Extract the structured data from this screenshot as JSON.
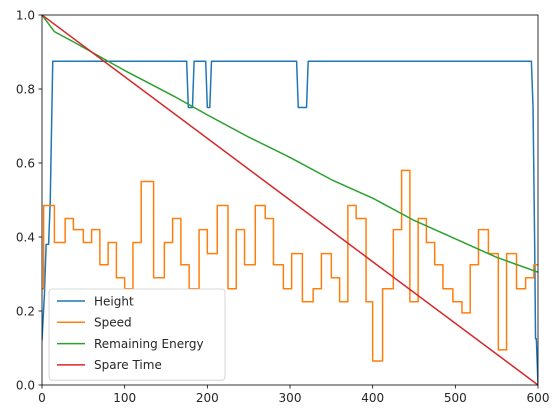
{
  "chart_data": {
    "type": "line",
    "title": "",
    "xlabel": "",
    "ylabel": "",
    "xlim": [
      0,
      600
    ],
    "ylim": [
      0,
      1
    ],
    "xticks": [
      "0",
      "100",
      "200",
      "300",
      "400",
      "500",
      "600"
    ],
    "yticks": [
      "0.0",
      "0.2",
      "0.4",
      "0.6",
      "0.8",
      "1.0"
    ],
    "grid": false,
    "legend_position": "lower-left",
    "series": [
      {
        "name": "Height",
        "color": "#1f77b4",
        "step": false,
        "points": [
          [
            0,
            0.12
          ],
          [
            3,
            0.25
          ],
          [
            5,
            0.38
          ],
          [
            8,
            0.38
          ],
          [
            10,
            0.5
          ],
          [
            13,
            0.875
          ],
          [
            175,
            0.875
          ],
          [
            177,
            0.75
          ],
          [
            182,
            0.75
          ],
          [
            184,
            0.875
          ],
          [
            198,
            0.875
          ],
          [
            200,
            0.75
          ],
          [
            203,
            0.75
          ],
          [
            205,
            0.875
          ],
          [
            308,
            0.875
          ],
          [
            310,
            0.75
          ],
          [
            320,
            0.75
          ],
          [
            322,
            0.875
          ],
          [
            592,
            0.875
          ],
          [
            594,
            0.75
          ],
          [
            596,
            0.375
          ],
          [
            597,
            0.125
          ],
          [
            598,
            0.125
          ],
          [
            600,
            0.0
          ]
        ]
      },
      {
        "name": "Speed",
        "color": "#ff7f0e",
        "step": true,
        "points": [
          [
            0,
            0.26
          ],
          [
            2,
            0.485
          ],
          [
            15,
            0.385
          ],
          [
            28,
            0.45
          ],
          [
            38,
            0.42
          ],
          [
            50,
            0.385
          ],
          [
            60,
            0.42
          ],
          [
            70,
            0.325
          ],
          [
            80,
            0.385
          ],
          [
            90,
            0.29
          ],
          [
            100,
            0.26
          ],
          [
            110,
            0.385
          ],
          [
            120,
            0.55
          ],
          [
            135,
            0.29
          ],
          [
            148,
            0.385
          ],
          [
            158,
            0.45
          ],
          [
            168,
            0.325
          ],
          [
            178,
            0.26
          ],
          [
            190,
            0.42
          ],
          [
            200,
            0.355
          ],
          [
            212,
            0.485
          ],
          [
            225,
            0.26
          ],
          [
            235,
            0.42
          ],
          [
            245,
            0.325
          ],
          [
            258,
            0.485
          ],
          [
            270,
            0.45
          ],
          [
            280,
            0.325
          ],
          [
            292,
            0.26
          ],
          [
            302,
            0.355
          ],
          [
            315,
            0.225
          ],
          [
            328,
            0.26
          ],
          [
            338,
            0.355
          ],
          [
            350,
            0.29
          ],
          [
            360,
            0.225
          ],
          [
            370,
            0.485
          ],
          [
            380,
            0.45
          ],
          [
            392,
            0.225
          ],
          [
            400,
            0.065
          ],
          [
            412,
            0.26
          ],
          [
            425,
            0.42
          ],
          [
            435,
            0.58
          ],
          [
            445,
            0.225
          ],
          [
            455,
            0.45
          ],
          [
            465,
            0.385
          ],
          [
            475,
            0.325
          ],
          [
            485,
            0.26
          ],
          [
            497,
            0.225
          ],
          [
            508,
            0.195
          ],
          [
            518,
            0.325
          ],
          [
            528,
            0.42
          ],
          [
            540,
            0.355
          ],
          [
            552,
            0.095
          ],
          [
            562,
            0.355
          ],
          [
            574,
            0.26
          ],
          [
            585,
            0.29
          ],
          [
            595,
            0.325
          ],
          [
            600,
            0.325
          ]
        ]
      },
      {
        "name": "Remaining Energy",
        "color": "#2ca02c",
        "step": false,
        "points": [
          [
            0,
            1.0
          ],
          [
            5,
            0.985
          ],
          [
            15,
            0.955
          ],
          [
            40,
            0.925
          ],
          [
            80,
            0.875
          ],
          [
            100,
            0.85
          ],
          [
            130,
            0.815
          ],
          [
            160,
            0.78
          ],
          [
            200,
            0.73
          ],
          [
            250,
            0.67
          ],
          [
            300,
            0.615
          ],
          [
            350,
            0.555
          ],
          [
            400,
            0.505
          ],
          [
            450,
            0.445
          ],
          [
            500,
            0.395
          ],
          [
            550,
            0.345
          ],
          [
            600,
            0.305
          ]
        ]
      },
      {
        "name": "Spare Time",
        "color": "#d62728",
        "step": false,
        "points": [
          [
            0,
            1.0
          ],
          [
            600,
            0.0
          ]
        ]
      }
    ]
  }
}
